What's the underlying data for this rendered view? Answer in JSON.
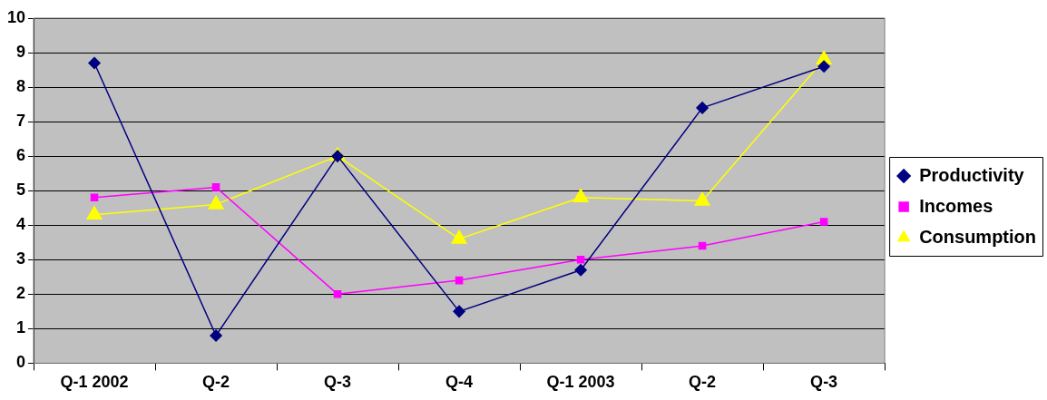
{
  "chart_data": {
    "type": "line",
    "categories": [
      "Q-1 2002",
      "Q-2",
      "Q-3",
      "Q-4",
      "Q-1 2003",
      "Q-2",
      "Q-3"
    ],
    "series": [
      {
        "name": "Productivity",
        "color": "#000080",
        "marker": "diamond",
        "values": [
          8.7,
          0.8,
          6.0,
          1.5,
          2.7,
          7.4,
          8.6
        ]
      },
      {
        "name": "Incomes",
        "color": "#ff00ff",
        "marker": "square",
        "values": [
          4.8,
          5.1,
          2.0,
          2.4,
          3.0,
          3.4,
          4.1
        ]
      },
      {
        "name": "Consumption",
        "color": "#ffff00",
        "marker": "triangle",
        "values": [
          4.3,
          4.6,
          6.0,
          3.6,
          4.8,
          4.7,
          8.8
        ]
      }
    ],
    "ylim": [
      0,
      10
    ],
    "yticks": [
      0,
      1,
      2,
      3,
      4,
      5,
      6,
      7,
      8,
      9,
      10
    ],
    "grid": "y",
    "legend": "right",
    "line_style": "solid"
  }
}
